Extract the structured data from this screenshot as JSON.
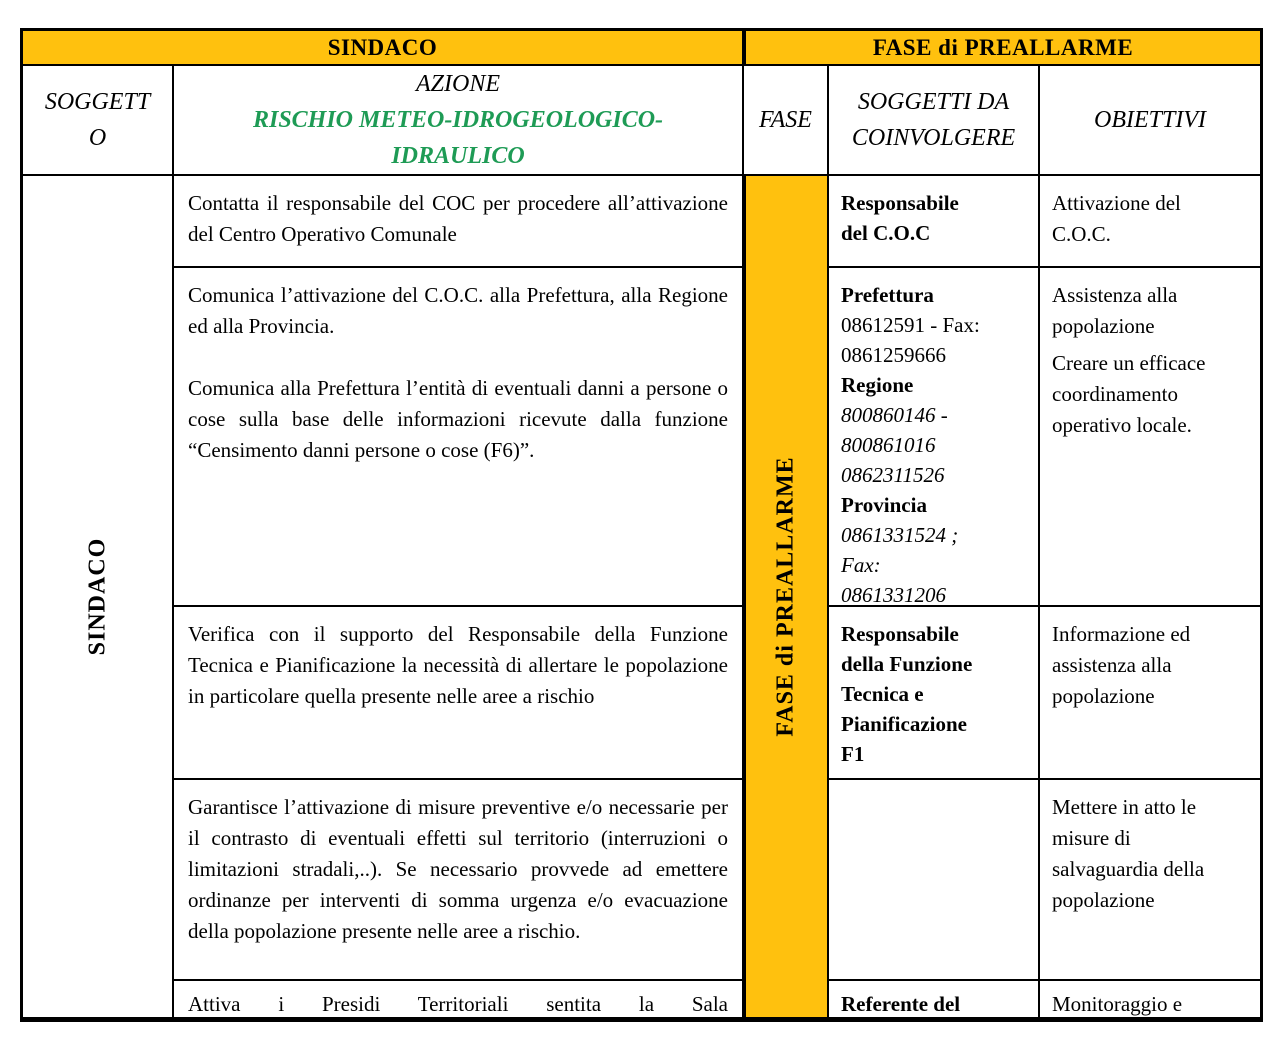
{
  "colors": {
    "header_bg": "#FFC10E",
    "risk_green": "#1E9B55"
  },
  "header": {
    "sindaco": "SINDACO",
    "fase_preallarme": "FASE di PREALLARME"
  },
  "columns": {
    "soggetto": "SOGGETTO",
    "azione": "AZIONE",
    "rischio": "RISCHIO METEO-IDROGEOLOGICO-IDRAULICO",
    "fase": "FASE",
    "soggetti_da_coinvolgere": "SOGGETTI DA COINVOLGERE",
    "obiettivi": "OBIETTIVI"
  },
  "row_groups": {
    "left_label": "SINDACO",
    "fase_label": "FASE di PREALLARME"
  },
  "rows": [
    {
      "azione": [
        "Contatta il responsabile del COC per procedere all’attivazione del Centro Operativo Comunale"
      ],
      "soggetti": [
        {
          "t": "Responsabile",
          "b": true
        },
        {
          "t": "del C.O.C",
          "b": true
        }
      ],
      "obiettivi": [
        [
          "Attivazione del",
          "C.O.C."
        ]
      ]
    },
    {
      "azione": [
        "Comunica l’attivazione del C.O.C. alla Prefettura, alla Regione ed alla Provincia.",
        "Comunica alla Prefettura l’entità di eventuali danni a persone o cose sulla base delle informazioni ricevute dalla funzione “Censimento danni persone o cose (F6)”."
      ],
      "soggetti": [
        {
          "t": "Prefettura",
          "b": true
        },
        {
          "t": "08612591 - Fax:"
        },
        {
          "t": "0861259666"
        },
        {
          "t": "Regione",
          "b": true
        },
        {
          "t": "800860146 -",
          "i": true
        },
        {
          "t": "800861016",
          "i": true
        },
        {
          "t": "0862311526",
          "i": true
        },
        {
          "t": "Provincia",
          "b": true
        },
        {
          "t": "0861331524 ;",
          "i": true
        },
        {
          "t": "Fax:",
          "i": true
        },
        {
          "t": "0861331206",
          "i": true
        }
      ],
      "obiettivi": [
        [
          "Assistenza alla",
          "popolazione"
        ],
        [
          "Creare un efficace",
          "coordinamento",
          "operativo locale."
        ]
      ]
    },
    {
      "azione": [
        "Verifica con il supporto del Responsabile della Funzione Tecnica e Pianificazione la necessità di allertare le popolazione in particolare quella presente nelle aree a rischio"
      ],
      "soggetti": [
        {
          "t": "Responsabile",
          "b": true
        },
        {
          "t": "della Funzione",
          "b": true
        },
        {
          "t": "Tecnica e",
          "b": true
        },
        {
          "t": "Pianificazione",
          "b": true
        },
        {
          "t": "F1",
          "b": true
        }
      ],
      "obiettivi": [
        [
          "Informazione ed",
          "assistenza alla",
          "popolazione"
        ]
      ]
    },
    {
      "azione": [
        "Garantisce l’attivazione di misure preventive e/o necessarie per il contrasto di eventuali effetti sul territorio (interruzioni o limitazioni stradali,..). Se necessario provvede ad emettere ordinanze per interventi di somma urgenza e/o evacuazione della popolazione presente nelle aree a rischio."
      ],
      "soggetti": [],
      "obiettivi": [
        [
          "Mettere in atto le",
          "misure di",
          "salvaguardia della",
          "popolazione"
        ]
      ]
    },
    {
      "azione": [
        "Attiva i Presidi Territoriali sentita la Sala"
      ],
      "soggetti": [
        {
          "t": "Referente del",
          "b": true
        }
      ],
      "obiettivi": [
        [
          "Monitoraggio e"
        ]
      ]
    }
  ]
}
